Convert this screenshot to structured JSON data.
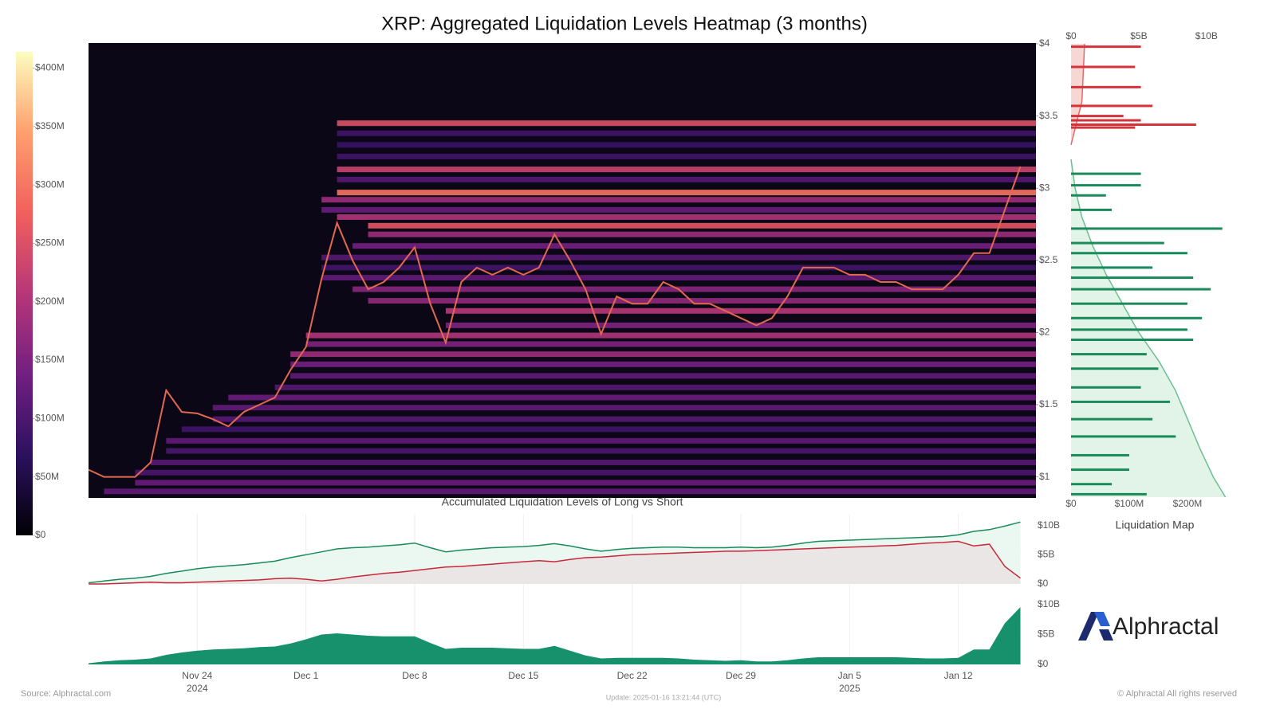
{
  "chart_data": [
    {
      "type": "heatmap",
      "title": "XRP: Aggregated Liquidation Levels Heatmap (3 months)",
      "x": [
        "2024-11-17",
        "2024-11-18",
        "2024-11-19",
        "2024-11-20",
        "2024-11-21",
        "2024-11-22",
        "2024-11-23",
        "2024-11-24",
        "2024-11-25",
        "2024-11-26",
        "2024-11-27",
        "2024-11-28",
        "2024-11-29",
        "2024-11-30",
        "2024-12-01",
        "2024-12-02",
        "2024-12-03",
        "2024-12-04",
        "2024-12-05",
        "2024-12-06",
        "2024-12-07",
        "2024-12-08",
        "2024-12-09",
        "2024-12-10",
        "2024-12-11",
        "2024-12-12",
        "2024-12-13",
        "2024-12-14",
        "2024-12-15",
        "2024-12-16",
        "2024-12-17",
        "2024-12-18",
        "2024-12-19",
        "2024-12-20",
        "2024-12-21",
        "2024-12-22",
        "2024-12-23",
        "2024-12-24",
        "2024-12-25",
        "2024-12-26",
        "2024-12-27",
        "2024-12-28",
        "2024-12-29",
        "2024-12-30",
        "2024-12-31",
        "2025-01-01",
        "2025-01-02",
        "2025-01-03",
        "2025-01-04",
        "2025-01-05",
        "2025-01-06",
        "2025-01-07",
        "2025-01-08",
        "2025-01-09",
        "2025-01-10",
        "2025-01-11",
        "2025-01-12",
        "2025-01-13",
        "2025-01-14",
        "2025-01-15",
        "2025-01-16"
      ],
      "xlim": [
        "2024-11-17",
        "2025-01-17"
      ],
      "xticks": [
        {
          "value": "2024-11-24",
          "label": "Nov 24"
        },
        {
          "value": "2024-12-01",
          "label": "Dec 1"
        },
        {
          "value": "2024-12-08",
          "label": "Dec 8"
        },
        {
          "value": "2024-12-15",
          "label": "Dec 15"
        },
        {
          "value": "2024-12-22",
          "label": "Dec 22"
        },
        {
          "value": "2024-12-29",
          "label": "Dec 29"
        },
        {
          "value": "2025-01-05",
          "label": "Jan 5"
        },
        {
          "value": "2025-01-12",
          "label": "Jan 12"
        }
      ],
      "year_labels": [
        {
          "value": "2024-11-24",
          "label": "2024"
        },
        {
          "value": "2025-01-05",
          "label": "2025"
        }
      ],
      "ylim": [
        0.86,
        4.0
      ],
      "yticks": [
        {
          "value": 1,
          "label": "$1"
        },
        {
          "value": 1.5,
          "label": "$1.5"
        },
        {
          "value": 2,
          "label": "$2"
        },
        {
          "value": 2.5,
          "label": "$2.5"
        },
        {
          "value": 3,
          "label": "$3"
        },
        {
          "value": 3.5,
          "label": "$3.5"
        },
        {
          "value": 4,
          "label": "$4"
        }
      ],
      "price": {
        "color": "#e2694f",
        "values": [
          1.05,
          1.0,
          1.0,
          1.0,
          1.1,
          1.6,
          1.45,
          1.44,
          1.4,
          1.35,
          1.45,
          1.5,
          1.55,
          1.74,
          1.9,
          2.37,
          2.76,
          2.5,
          2.3,
          2.35,
          2.45,
          2.59,
          2.2,
          1.93,
          2.35,
          2.45,
          2.4,
          2.45,
          2.4,
          2.45,
          2.68,
          2.5,
          2.3,
          1.99,
          2.25,
          2.2,
          2.2,
          2.35,
          2.3,
          2.2,
          2.2,
          2.15,
          2.1,
          2.05,
          2.1,
          2.25,
          2.45,
          2.45,
          2.45,
          2.4,
          2.4,
          2.35,
          2.35,
          2.3,
          2.3,
          2.3,
          2.4,
          2.55,
          2.55,
          2.85,
          3.15
        ]
      },
      "levels": {
        "price": [
          3.45,
          3.38,
          3.3,
          3.22,
          3.13,
          3.06,
          2.97,
          2.92,
          2.85,
          2.8,
          2.74,
          2.68,
          2.6,
          2.52,
          2.45,
          2.38,
          2.3,
          2.22,
          2.15,
          2.05,
          1.98,
          1.92,
          1.85,
          1.78,
          1.7,
          1.62,
          1.55,
          1.48,
          1.4,
          1.33,
          1.25,
          1.18,
          1.1,
          1.03,
          0.96,
          0.9
        ],
        "start": [
          "2024-12-03",
          "2024-12-03",
          "2024-12-03",
          "2024-12-03",
          "2024-12-03",
          "2024-12-03",
          "2024-12-03",
          "2024-12-02",
          "2024-12-02",
          "2024-12-03",
          "2024-12-05",
          "2024-12-05",
          "2024-12-04",
          "2024-12-02",
          "2024-12-02",
          "2024-12-02",
          "2024-12-04",
          "2024-12-05",
          "2024-12-10",
          "2024-12-10",
          "2024-12-01",
          "2024-12-01",
          "2024-11-30",
          "2024-11-30",
          "2024-11-30",
          "2024-11-29",
          "2024-11-26",
          "2024-11-25",
          "2024-11-25",
          "2024-11-23",
          "2024-11-22",
          "2024-11-22",
          "2024-11-21",
          "2024-11-20",
          "2024-11-20",
          "2024-11-18"
        ],
        "values": [
          250,
          90,
          80,
          90,
          230,
          110,
          300,
          180,
          130,
          200,
          260,
          180,
          140,
          110,
          90,
          120,
          160,
          170,
          210,
          150,
          200,
          150,
          180,
          140,
          120,
          110,
          130,
          120,
          110,
          90,
          120,
          100,
          110,
          100,
          130,
          120
        ]
      },
      "colorbar": {
        "colormap": [
          "#000004",
          "#2c115f",
          "#721f81",
          "#b73779",
          "#f1605d",
          "#fe9f6d",
          "#fcfdbf"
        ],
        "lim": [
          0,
          414
        ],
        "ticks": [
          {
            "value": 0,
            "label": "$0"
          },
          {
            "value": 50,
            "label": "$50M"
          },
          {
            "value": 100,
            "label": "$100M"
          },
          {
            "value": 150,
            "label": "$150M"
          },
          {
            "value": 200,
            "label": "$200M"
          },
          {
            "value": 250,
            "label": "$250M"
          },
          {
            "value": 300,
            "label": "$300M"
          },
          {
            "value": 350,
            "label": "$350M"
          },
          {
            "value": 400,
            "label": "$400M"
          }
        ]
      }
    },
    {
      "type": "hbar",
      "title": "Liquidation Map",
      "ylim": [
        0.86,
        4.0
      ],
      "xlim": [
        0,
        270
      ],
      "xticks": [
        {
          "value": 0,
          "label": "$0"
        },
        {
          "value": 100,
          "label": "$100M"
        },
        {
          "value": 200,
          "label": "$200M"
        }
      ],
      "x2lim": [
        0,
        11.6
      ],
      "x2ticks": [
        {
          "value": 0,
          "label": "$0"
        },
        {
          "value": 5,
          "label": "$5B"
        },
        {
          "value": 10,
          "label": "$10B"
        }
      ],
      "short": {
        "color": "#d6323a",
        "price": [
          3.98,
          3.84,
          3.7,
          3.57,
          3.5,
          3.47,
          3.44,
          3.42
        ],
        "values": [
          120,
          110,
          120,
          140,
          90,
          120,
          215,
          110
        ],
        "cumulative": {
          "color": "#e36a6a",
          "fill": "#f7d7d3",
          "price": [
            3.3,
            3.45,
            3.6,
            3.8,
            4.0
          ],
          "values": [
            0,
            0.4,
            0.8,
            0.9,
            1.0
          ]
        }
      },
      "long": {
        "color": "#1a8a5a",
        "price": [
          3.1,
          3.02,
          2.95,
          2.85,
          2.72,
          2.62,
          2.55,
          2.45,
          2.38,
          2.3,
          2.2,
          2.1,
          2.02,
          1.95,
          1.85,
          1.75,
          1.62,
          1.52,
          1.4,
          1.28,
          1.15,
          1.05,
          0.95,
          0.88
        ],
        "values": [
          120,
          120,
          60,
          70,
          260,
          160,
          200,
          140,
          210,
          240,
          200,
          225,
          200,
          210,
          130,
          150,
          120,
          170,
          140,
          180,
          100,
          100,
          70,
          130
        ],
        "cumulative": {
          "color": "#6cc08f",
          "fill": "#e2f4e8",
          "price": [
            3.2,
            3.0,
            2.8,
            2.6,
            2.4,
            2.2,
            2.0,
            1.8,
            1.6,
            1.4,
            1.2,
            1.0,
            0.86
          ],
          "values": [
            0,
            0.3,
            0.8,
            1.6,
            2.6,
            3.8,
            5.0,
            6.5,
            7.7,
            8.6,
            9.5,
            10.5,
            11.4
          ]
        }
      }
    },
    {
      "type": "line",
      "title": "Accumulated Liquidation Levels of Long vs Short",
      "ylim": [
        0,
        12
      ],
      "yticks": [
        {
          "value": 0,
          "label": "$0"
        },
        {
          "value": 5,
          "label": "$5B"
        },
        {
          "value": 10,
          "label": "$10B"
        }
      ],
      "series": [
        {
          "color": "#1a8a5a",
          "fill": "#e8f6ef",
          "values": [
            0.2,
            0.5,
            0.8,
            1.0,
            1.3,
            1.8,
            2.2,
            2.6,
            2.9,
            3.1,
            3.3,
            3.6,
            3.9,
            4.5,
            5.0,
            5.5,
            6.0,
            6.2,
            6.3,
            6.5,
            6.7,
            7.0,
            6.2,
            5.5,
            5.8,
            6.0,
            6.2,
            6.3,
            6.4,
            6.6,
            6.9,
            6.5,
            6.0,
            5.6,
            5.9,
            6.1,
            6.2,
            6.3,
            6.3,
            6.2,
            6.2,
            6.2,
            6.3,
            6.2,
            6.3,
            6.6,
            7.0,
            7.3,
            7.4,
            7.5,
            7.6,
            7.7,
            7.8,
            7.9,
            8.0,
            8.1,
            8.4,
            9.0,
            9.3,
            9.9,
            10.6
          ]
        },
        {
          "color": "#c8283a",
          "fill": "#e9e3e3",
          "values": [
            0,
            0,
            0.1,
            0.2,
            0.3,
            0.2,
            0.2,
            0.3,
            0.4,
            0.5,
            0.6,
            0.7,
            0.9,
            1.0,
            0.8,
            0.5,
            0.8,
            1.2,
            1.5,
            1.8,
            2.0,
            2.3,
            2.6,
            2.9,
            3.0,
            3.2,
            3.4,
            3.6,
            3.8,
            4.0,
            3.8,
            4.2,
            4.5,
            4.6,
            4.8,
            5.0,
            5.1,
            5.2,
            5.3,
            5.4,
            5.5,
            5.6,
            5.6,
            5.7,
            5.8,
            5.9,
            6.0,
            6.1,
            6.2,
            6.3,
            6.4,
            6.5,
            6.6,
            6.8,
            7.0,
            7.1,
            7.3,
            6.5,
            6.8,
            3.0,
            1.0
          ]
        }
      ]
    },
    {
      "type": "area",
      "ylim": [
        0,
        11.2
      ],
      "yticks": [
        {
          "value": 0,
          "label": "$0"
        },
        {
          "value": 5,
          "label": "$5B"
        },
        {
          "value": 10,
          "label": "$10B"
        }
      ],
      "color": "#16916b",
      "values": [
        0.2,
        0.5,
        0.7,
        0.8,
        1.0,
        1.6,
        2.0,
        2.3,
        2.5,
        2.6,
        2.7,
        2.9,
        3.0,
        3.5,
        4.2,
        5.0,
        5.2,
        5.0,
        4.8,
        4.7,
        4.7,
        4.7,
        3.6,
        2.6,
        2.8,
        2.8,
        2.8,
        2.7,
        2.6,
        2.6,
        3.1,
        2.3,
        1.5,
        1.0,
        1.1,
        1.1,
        1.1,
        1.1,
        1.0,
        0.8,
        0.7,
        0.6,
        0.7,
        0.5,
        0.5,
        0.7,
        1.0,
        1.2,
        1.2,
        1.2,
        1.2,
        1.2,
        1.2,
        1.1,
        1.0,
        1.0,
        1.1,
        2.5,
        2.5,
        6.9,
        9.6
      ]
    }
  ],
  "source": "Source: Alphractal.com",
  "update": "Update: 2025-01-16 13:21:44 (UTC)",
  "copyright": "© Alphractal All rights reserved",
  "brand": "Alphractal"
}
